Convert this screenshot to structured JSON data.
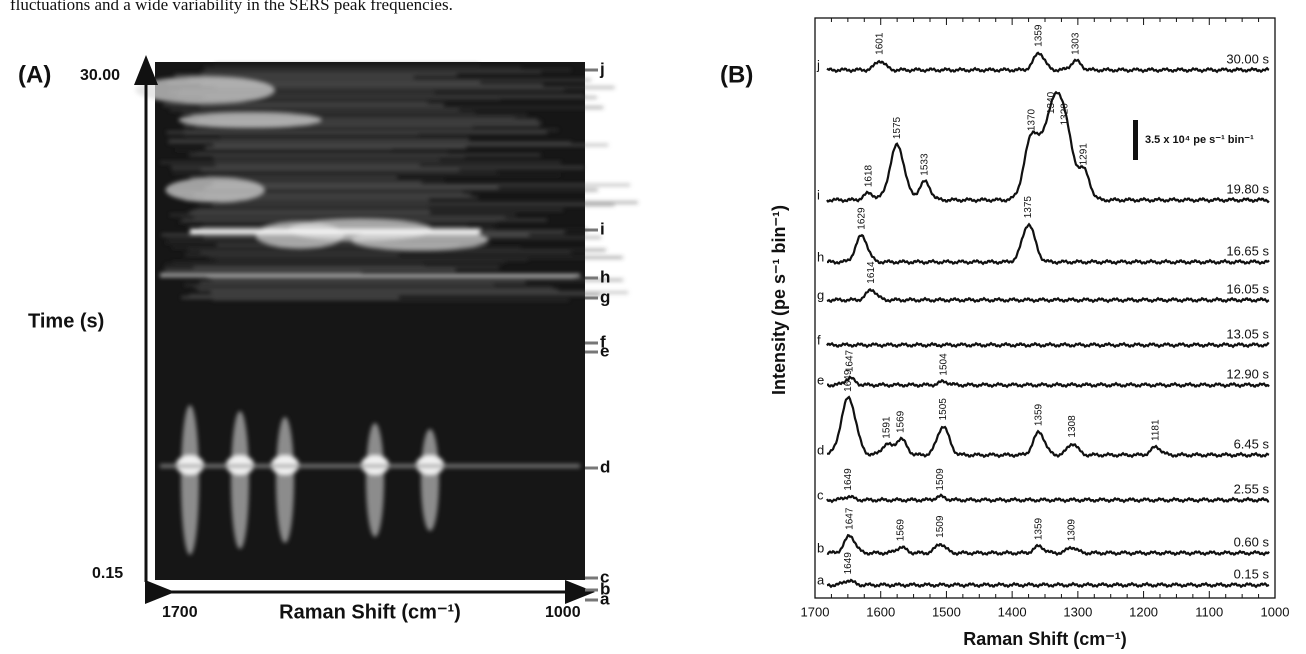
{
  "caption_fragment": "fluctuations and a wide variability in the SERS peak frequencies.",
  "panel_a": {
    "label": "(A)",
    "y_title": "Time (s)",
    "y_top": "30.00",
    "y_bottom": "0.15",
    "x_title": "Raman Shift (cm⁻¹)",
    "x_left": "1700",
    "x_right": "1000",
    "markers": [
      "j",
      "i",
      "h",
      "g",
      "f",
      "e",
      "d",
      "c",
      "b",
      "a"
    ]
  },
  "chart_data": {
    "type": "stacked-spectra",
    "label": "(B)",
    "x_title": "Raman Shift (cm⁻¹)",
    "y_title": "Intensity (pe s⁻¹ bin⁻¹)",
    "xlim": [
      1700,
      1000
    ],
    "xticks": [
      1700,
      1600,
      1500,
      1400,
      1300,
      1200,
      1100,
      1000
    ],
    "scale_bar": {
      "value": 3.5,
      "label": "3.5 x 10⁴ pe s⁻¹ bin⁻¹"
    },
    "color": "#111111",
    "spectra": [
      {
        "name": "j",
        "time": "30.00 s",
        "peaks": [
          {
            "x": 1601,
            "height": 0.8
          },
          {
            "x": 1359,
            "height": 1.5
          },
          {
            "x": 1303,
            "height": 0.8
          }
        ]
      },
      {
        "name": "i",
        "time": "19.80 s",
        "peaks": [
          {
            "x": 1618,
            "height": 0.6
          },
          {
            "x": 1575,
            "height": 4.8
          },
          {
            "x": 1533,
            "height": 1.6
          },
          {
            "x": 1370,
            "height": 5.5
          },
          {
            "x": 1340,
            "height": 7
          },
          {
            "x": 1320,
            "height": 6
          },
          {
            "x": 1291,
            "height": 2.5
          }
        ]
      },
      {
        "name": "h",
        "time": "16.65 s",
        "peaks": [
          {
            "x": 1629,
            "height": 2.3
          },
          {
            "x": 1375,
            "height": 3.3
          }
        ]
      },
      {
        "name": "g",
        "time": "16.05 s",
        "peaks": [
          {
            "x": 1614,
            "height": 0.9
          }
        ]
      },
      {
        "name": "f",
        "time": "13.05 s",
        "peaks": []
      },
      {
        "name": "e",
        "time": "12.90 s",
        "peaks": [
          {
            "x": 1647,
            "height": 0.6
          },
          {
            "x": 1504,
            "height": 0.3
          }
        ]
      },
      {
        "name": "d",
        "time": "6.45 s",
        "peaks": [
          {
            "x": 1649,
            "height": 5
          },
          {
            "x": 1591,
            "height": 0.9
          },
          {
            "x": 1569,
            "height": 1.4
          },
          {
            "x": 1505,
            "height": 2.5
          },
          {
            "x": 1359,
            "height": 2
          },
          {
            "x": 1308,
            "height": 1
          },
          {
            "x": 1181,
            "height": 0.7
          }
        ]
      },
      {
        "name": "c",
        "time": "2.55 s",
        "peaks": [
          {
            "x": 1649,
            "height": 0.3
          },
          {
            "x": 1509,
            "height": 0.3
          }
        ]
      },
      {
        "name": "b",
        "time": "0.60 s",
        "peaks": [
          {
            "x": 1647,
            "height": 1.5
          },
          {
            "x": 1569,
            "height": 0.5
          },
          {
            "x": 1509,
            "height": 0.8
          },
          {
            "x": 1359,
            "height": 0.6
          },
          {
            "x": 1309,
            "height": 0.5
          }
        ]
      },
      {
        "name": "a",
        "time": "0.15 s",
        "peaks": [
          {
            "x": 1649,
            "height": 0.4
          }
        ]
      }
    ]
  }
}
